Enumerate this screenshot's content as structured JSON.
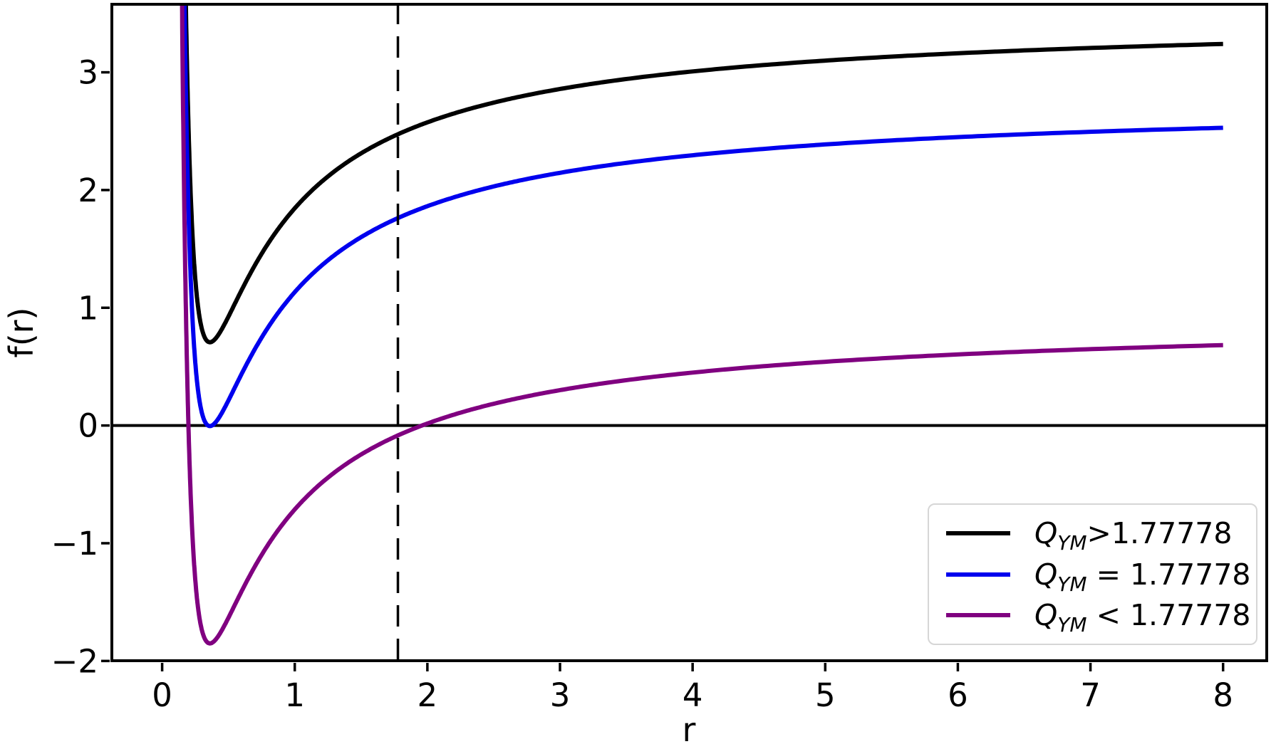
{
  "figure": {
    "background": "#ffffff"
  },
  "chart_data": {
    "type": "line",
    "title": "",
    "xlabel": "r",
    "ylabel": "f(r)",
    "xlim": [
      -0.39,
      8.34
    ],
    "ylim": [
      -2.01,
      3.59
    ],
    "x_ticks": [
      0,
      1,
      2,
      3,
      4,
      5,
      6,
      7,
      8
    ],
    "y_ticks": [
      -2,
      -1,
      0,
      1,
      2,
      3
    ],
    "grid": false,
    "legend_position": "lower right",
    "reference_lines": {
      "horizontal_zero_line": {
        "y": 0,
        "style": "solid",
        "color": "#000000"
      },
      "vertical_dashed_line": {
        "x": 1.77778,
        "style": "dashed",
        "color": "#000000"
      }
    },
    "series": [
      {
        "id": "q-greater",
        "label": "Q_YM>1.77778",
        "color": "#000000",
        "model": "f(r) = A - B/r + C/r^2",
        "A": 3.485,
        "B": 2.0,
        "C": 0.36,
        "r_draw_range": [
          0.125,
          8
        ],
        "minimum": [
          0.36,
          0.71
        ],
        "r": [
          1,
          2,
          3,
          4,
          5,
          6,
          7,
          8
        ],
        "f": [
          1.85,
          2.58,
          2.86,
          3.01,
          3.1,
          3.16,
          3.21,
          3.24
        ]
      },
      {
        "id": "q-equal",
        "label": "Q_YM = 1.77778",
        "color": "#0000ee",
        "model": "f(r) = A - B/r + C/r^2",
        "A": 2.773,
        "B": 2.0,
        "C": 0.36,
        "r_draw_range": [
          0.125,
          8
        ],
        "minimum": [
          0.36,
          0.0
        ],
        "r": [
          1,
          2,
          3,
          4,
          5,
          6,
          7,
          8
        ],
        "f": [
          1.13,
          1.86,
          2.15,
          2.3,
          2.39,
          2.45,
          2.5,
          2.53
        ]
      },
      {
        "id": "q-less",
        "label": "Q_YM < 1.77778",
        "color": "#800080",
        "model": "f(r) = A - B/r + C/r^2",
        "A": 0.927,
        "B": 2.0,
        "C": 0.36,
        "r_draw_range": [
          0.125,
          8
        ],
        "minimum": [
          0.36,
          -1.85
        ],
        "zero_crossings": [
          0.2,
          1.96
        ],
        "r": [
          1,
          2,
          3,
          4,
          5,
          6,
          7,
          8
        ],
        "f": [
          -0.71,
          0.02,
          0.3,
          0.45,
          0.54,
          0.6,
          0.65,
          0.68
        ]
      }
    ]
  },
  "legend": {
    "entries": [
      {
        "symbol": "Q",
        "subscript": "YM",
        "relation": ">1.77778",
        "color": "#000000"
      },
      {
        "symbol": "Q",
        "subscript": "YM",
        "relation": " = 1.77778",
        "color": "#0000ee"
      },
      {
        "symbol": "Q",
        "subscript": "YM",
        "relation": " < 1.77778",
        "color": "#800080"
      }
    ]
  }
}
